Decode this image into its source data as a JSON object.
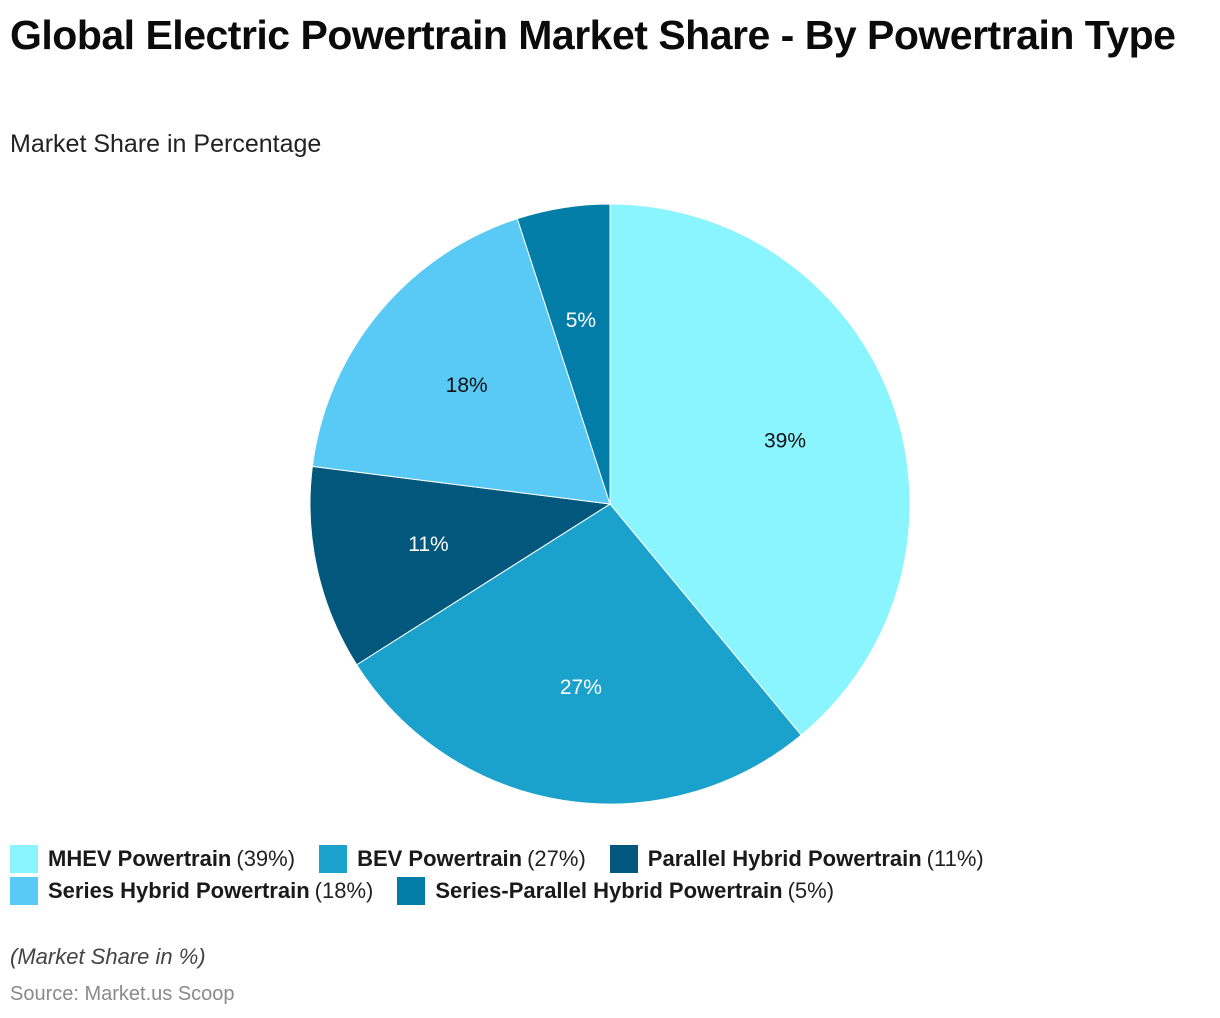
{
  "header": {
    "title": "Global Electric Powertrain Market Share - By Powertrain Type",
    "subtitle": "Market Share in Percentage"
  },
  "chart_data": {
    "type": "pie",
    "title": "Global Electric Powertrain Market Share - By Powertrain Type",
    "subtitle": "Market Share in Percentage",
    "unit": "%",
    "start_angle": "12 o'clock, clockwise",
    "legend_position": "bottom",
    "slices": [
      {
        "name": "MHEV Powertrain",
        "value": 39,
        "label": "39%",
        "legend_value": "(39%)",
        "color": "#8af4ff",
        "label_color": "#111111"
      },
      {
        "name": "BEV Powertrain",
        "value": 27,
        "label": "27%",
        "legend_value": "(27%)",
        "color": "#1aa1cc",
        "label_color": "#ffffff"
      },
      {
        "name": "Parallel Hybrid Powertrain",
        "value": 11,
        "label": "11%",
        "legend_value": "(11%)",
        "color": "#01577c",
        "label_color": "#ffffff"
      },
      {
        "name": "Series Hybrid Powertrain",
        "value": 18,
        "label": "18%",
        "legend_value": "(18%)",
        "color": "#58caf5",
        "label_color": "#111111"
      },
      {
        "name": "Series-Parallel Hybrid Powertrain",
        "value": 5,
        "label": "5%",
        "legend_value": "(5%)",
        "color": "#027da8",
        "label_color": "#ffffff"
      }
    ]
  },
  "footer": {
    "note": "(Market Share in %)",
    "source": "Source: Market.us Scoop"
  }
}
